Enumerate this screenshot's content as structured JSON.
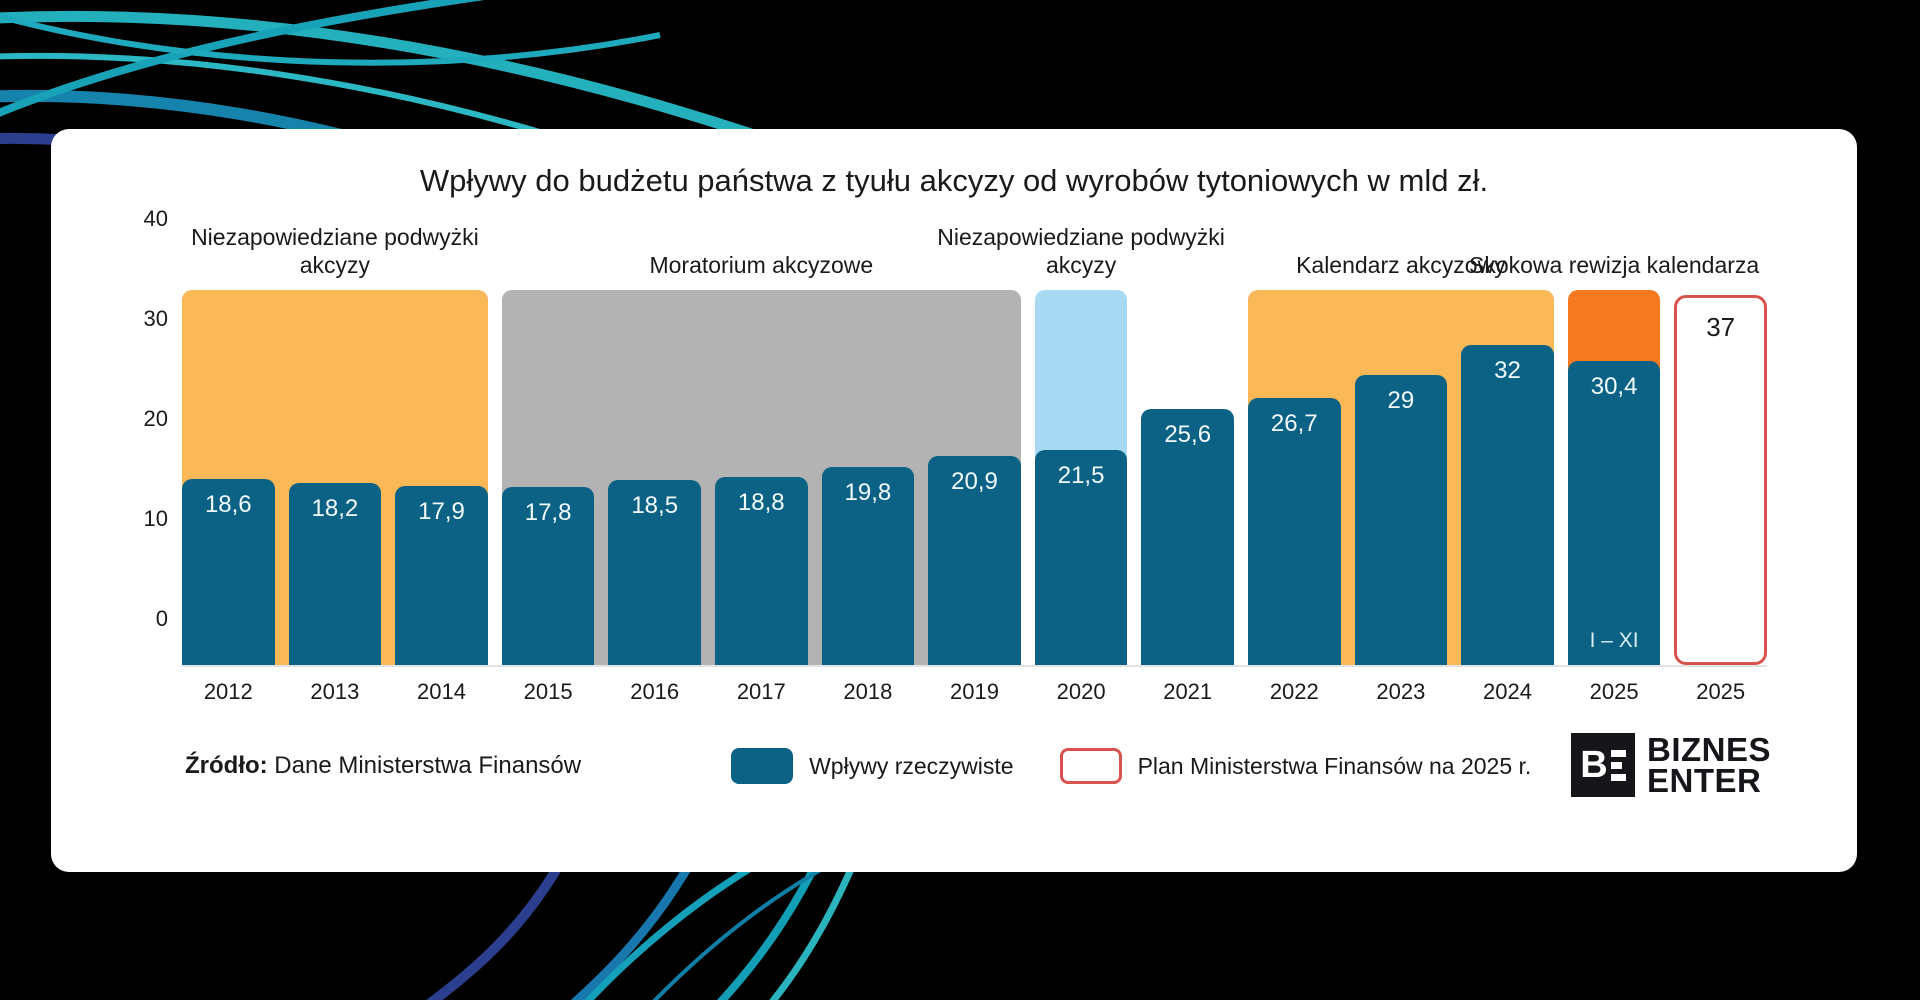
{
  "colors": {
    "background": "#000000",
    "card": "#ffffff",
    "bar_actual": "#0B6284",
    "plan_outline": "#D9534E",
    "region_orange": "#FBB857",
    "region_gray": "#B3B3B3",
    "region_lightblue": "#A7DAF2",
    "region_darkorange": "#F5791F"
  },
  "chart_data": {
    "type": "bar",
    "title": "Wpływy do budżetu państwa z tyułu akcyzy od wyrobów tytoniowych w mld zł.",
    "xlabel": "",
    "ylabel": "",
    "ylim": [
      0,
      40
    ],
    "yticks": [
      0,
      10,
      20,
      30,
      40
    ],
    "grid": false,
    "legend_position": "bottom",
    "categories": [
      "2012",
      "2013",
      "2014",
      "2015",
      "2016",
      "2017",
      "2018",
      "2019",
      "2020",
      "2021",
      "2022",
      "2023",
      "2024",
      "2025",
      "2025"
    ],
    "bars": [
      {
        "year": "2012",
        "value": 18.6,
        "label": "18,6",
        "kind": "actual"
      },
      {
        "year": "2013",
        "value": 18.2,
        "label": "18,2",
        "kind": "actual"
      },
      {
        "year": "2014",
        "value": 17.9,
        "label": "17,9",
        "kind": "actual"
      },
      {
        "year": "2015",
        "value": 17.8,
        "label": "17,8",
        "kind": "actual"
      },
      {
        "year": "2016",
        "value": 18.5,
        "label": "18,5",
        "kind": "actual"
      },
      {
        "year": "2017",
        "value": 18.8,
        "label": "18,8",
        "kind": "actual"
      },
      {
        "year": "2018",
        "value": 19.8,
        "label": "19,8",
        "kind": "actual"
      },
      {
        "year": "2019",
        "value": 20.9,
        "label": "20,9",
        "kind": "actual"
      },
      {
        "year": "2020",
        "value": 21.5,
        "label": "21,5",
        "kind": "actual"
      },
      {
        "year": "2021",
        "value": 25.6,
        "label": "25,6",
        "kind": "actual"
      },
      {
        "year": "2022",
        "value": 26.7,
        "label": "26,7",
        "kind": "actual"
      },
      {
        "year": "2023",
        "value": 29,
        "label": "29",
        "kind": "actual"
      },
      {
        "year": "2024",
        "value": 32,
        "label": "32",
        "kind": "actual"
      },
      {
        "year": "2025",
        "value": 30.4,
        "label": "30,4",
        "kind": "actual",
        "sub_label": "I – XI"
      },
      {
        "year": "2025",
        "value": 37,
        "label": "37",
        "kind": "plan"
      }
    ],
    "regions": [
      {
        "label": "Niezapowiedziane podwyżki akcyzy",
        "from": 0,
        "to": 2,
        "top": 37.5,
        "color": "#FBB857"
      },
      {
        "label": "Moratorium akcyzowe",
        "from": 3,
        "to": 7,
        "top": 37.5,
        "color": "#B3B3B3"
      },
      {
        "label": "Niezapowiedziane podwyżki akcyzy",
        "from": 8,
        "to": 8,
        "top": 37.5,
        "color": "#A7DAF2"
      },
      {
        "label": "Kalendarz akcyzowy",
        "from": 10,
        "to": 12,
        "top": 37.5,
        "color": "#FBB857"
      },
      {
        "label": "Skokowa rewizja kalendarza",
        "from": 13,
        "to": 13,
        "top": 37.5,
        "color": "#F5791F"
      }
    ],
    "legend": [
      {
        "label": "Wpływy rzeczywiste",
        "swatch": "solid"
      },
      {
        "label": "Plan Ministerstwa Finansów na 2025 r.",
        "swatch": "outline"
      }
    ]
  },
  "source": {
    "label": "Źródło:",
    "text": " Dane Ministerstwa Finansów"
  },
  "logo": {
    "monogram": "B",
    "line1": "BIZNES",
    "line2": "ENTER"
  }
}
